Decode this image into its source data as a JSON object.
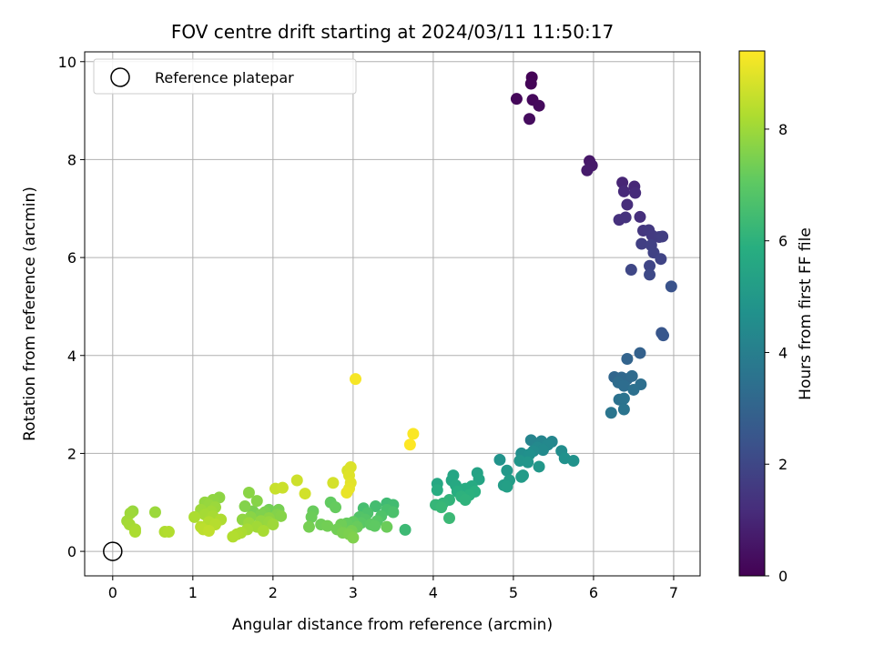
{
  "chart_data": {
    "type": "scatter",
    "title": "FOV centre drift starting at 2024/03/11 11:50:17",
    "xlabel": "Angular distance from reference (arcmin)",
    "ylabel": "Rotation from reference (arcmin)",
    "xlim": [
      -0.35,
      7.33
    ],
    "ylim": [
      -0.5,
      10.2
    ],
    "xticks": [
      "0",
      "1",
      "2",
      "3",
      "4",
      "5",
      "6",
      "7"
    ],
    "yticks": [
      "0",
      "2",
      "4",
      "6",
      "8",
      "10"
    ],
    "grid": true,
    "legend": {
      "placement": "top-left",
      "entries": [
        "Reference platepar"
      ]
    },
    "reference": {
      "x": 0,
      "y": 0,
      "label": "Reference platepar"
    },
    "colorbar": {
      "label": "Hours from first FF file",
      "colormap": "viridis",
      "range": [
        0,
        9.4
      ],
      "ticks": [
        "0",
        "2",
        "4",
        "6",
        "8"
      ]
    },
    "points": [
      [
        5.23,
        9.68,
        0.05
      ],
      [
        5.22,
        9.55,
        0.1
      ],
      [
        5.04,
        9.24,
        0.15
      ],
      [
        5.24,
        9.22,
        0.2
      ],
      [
        5.32,
        9.1,
        0.25
      ],
      [
        5.2,
        8.83,
        0.3
      ],
      [
        5.95,
        7.97,
        0.6
      ],
      [
        5.98,
        7.88,
        0.65
      ],
      [
        5.92,
        7.78,
        0.7
      ],
      [
        6.36,
        7.53,
        1.0
      ],
      [
        6.51,
        7.45,
        1.05
      ],
      [
        6.38,
        7.35,
        1.1
      ],
      [
        6.52,
        7.32,
        1.15
      ],
      [
        6.42,
        7.08,
        1.2
      ],
      [
        6.58,
        6.83,
        1.25
      ],
      [
        6.32,
        6.77,
        1.3
      ],
      [
        6.4,
        6.82,
        1.35
      ],
      [
        6.62,
        6.55,
        1.5
      ],
      [
        6.69,
        6.56,
        1.55
      ],
      [
        6.73,
        6.45,
        1.6
      ],
      [
        6.82,
        6.42,
        1.65
      ],
      [
        6.86,
        6.43,
        1.7
      ],
      [
        6.6,
        6.28,
        1.75
      ],
      [
        6.72,
        6.25,
        1.8
      ],
      [
        6.75,
        6.1,
        1.85
      ],
      [
        6.84,
        5.97,
        1.9
      ],
      [
        6.7,
        5.83,
        1.95
      ],
      [
        6.47,
        5.75,
        2.0
      ],
      [
        6.7,
        5.65,
        2.05
      ],
      [
        6.97,
        5.41,
        2.4
      ],
      [
        6.85,
        4.46,
        2.5
      ],
      [
        6.87,
        4.41,
        2.55
      ],
      [
        6.58,
        4.05,
        2.9
      ],
      [
        6.42,
        3.93,
        3.0
      ],
      [
        6.26,
        3.56,
        3.1
      ],
      [
        6.35,
        3.55,
        3.15
      ],
      [
        6.42,
        3.52,
        3.2
      ],
      [
        6.48,
        3.58,
        3.25
      ],
      [
        6.31,
        3.45,
        3.3
      ],
      [
        6.38,
        3.38,
        3.35
      ],
      [
        6.59,
        3.41,
        3.4
      ],
      [
        6.5,
        3.3,
        3.45
      ],
      [
        6.32,
        3.1,
        3.5
      ],
      [
        6.38,
        3.12,
        3.55
      ],
      [
        6.38,
        2.9,
        3.6
      ],
      [
        6.22,
        2.83,
        3.65
      ],
      [
        5.22,
        2.27,
        4.2
      ],
      [
        5.35,
        2.25,
        4.25
      ],
      [
        5.48,
        2.24,
        4.3
      ],
      [
        5.43,
        2.18,
        4.35
      ],
      [
        5.3,
        2.12,
        4.4
      ],
      [
        5.37,
        2.07,
        4.45
      ],
      [
        5.25,
        2.05,
        4.5
      ],
      [
        5.6,
        2.05,
        4.55
      ],
      [
        5.1,
        2.0,
        4.6
      ],
      [
        5.2,
        1.98,
        4.65
      ],
      [
        5.64,
        1.9,
        4.7
      ],
      [
        5.75,
        1.85,
        4.75
      ],
      [
        4.83,
        1.87,
        4.8
      ],
      [
        5.08,
        1.85,
        4.85
      ],
      [
        5.18,
        1.82,
        4.9
      ],
      [
        5.32,
        1.73,
        4.95
      ],
      [
        4.92,
        1.65,
        5.0
      ],
      [
        5.12,
        1.55,
        5.05
      ],
      [
        5.1,
        1.52,
        5.1
      ],
      [
        4.95,
        1.45,
        5.15
      ],
      [
        4.88,
        1.35,
        5.2
      ],
      [
        4.92,
        1.32,
        5.25
      ],
      [
        4.55,
        1.6,
        5.4
      ],
      [
        4.57,
        1.47,
        5.45
      ],
      [
        4.25,
        1.55,
        5.5
      ],
      [
        4.23,
        1.45,
        5.55
      ],
      [
        4.05,
        1.38,
        5.6
      ],
      [
        4.28,
        1.35,
        5.65
      ],
      [
        4.48,
        1.33,
        5.7
      ],
      [
        4.4,
        1.28,
        5.75
      ],
      [
        4.05,
        1.25,
        5.8
      ],
      [
        4.3,
        1.22,
        5.85
      ],
      [
        4.52,
        1.22,
        5.9
      ],
      [
        4.45,
        1.15,
        5.95
      ],
      [
        4.35,
        1.12,
        6.0
      ],
      [
        4.4,
        1.05,
        6.05
      ],
      [
        4.2,
        1.05,
        6.1
      ],
      [
        4.12,
        0.98,
        6.15
      ],
      [
        4.03,
        0.95,
        6.2
      ],
      [
        4.1,
        0.9,
        6.25
      ],
      [
        4.2,
        0.68,
        6.3
      ],
      [
        3.65,
        0.44,
        6.35
      ],
      [
        3.42,
        0.98,
        6.4
      ],
      [
        3.5,
        0.95,
        6.45
      ],
      [
        3.28,
        0.92,
        6.5
      ],
      [
        3.13,
        0.88,
        6.55
      ],
      [
        3.42,
        0.85,
        6.6
      ],
      [
        3.5,
        0.8,
        6.65
      ],
      [
        3.18,
        0.78,
        6.7
      ],
      [
        3.35,
        0.72,
        6.75
      ],
      [
        3.08,
        0.7,
        6.8
      ],
      [
        3.15,
        0.65,
        6.85
      ],
      [
        3.3,
        0.62,
        6.9
      ],
      [
        3.1,
        0.58,
        6.95
      ],
      [
        3.22,
        0.55,
        7.0
      ],
      [
        3.27,
        0.52,
        7.05
      ],
      [
        3.0,
        0.6,
        7.1
      ],
      [
        2.92,
        0.57,
        7.15
      ],
      [
        3.05,
        0.5,
        7.2
      ],
      [
        3.42,
        0.5,
        7.25
      ],
      [
        2.85,
        0.55,
        7.3
      ],
      [
        2.8,
        0.45,
        7.35
      ],
      [
        2.98,
        0.42,
        7.4
      ],
      [
        2.87,
        0.38,
        7.45
      ],
      [
        2.95,
        0.35,
        7.5
      ],
      [
        3.0,
        0.28,
        7.55
      ],
      [
        2.72,
        1.0,
        7.1
      ],
      [
        2.78,
        0.9,
        7.15
      ],
      [
        2.5,
        0.82,
        7.2
      ],
      [
        2.48,
        0.7,
        7.25
      ],
      [
        2.6,
        0.55,
        7.3
      ],
      [
        2.68,
        0.52,
        7.35
      ],
      [
        2.45,
        0.5,
        7.4
      ],
      [
        1.95,
        0.85,
        7.35
      ],
      [
        2.07,
        0.85,
        7.4
      ],
      [
        1.75,
        0.82,
        7.45
      ],
      [
        1.9,
        0.8,
        7.5
      ],
      [
        1.85,
        0.75,
        7.55
      ],
      [
        2.05,
        0.75,
        7.6
      ],
      [
        2.1,
        0.72,
        7.65
      ],
      [
        1.72,
        0.7,
        7.7
      ],
      [
        1.95,
        0.68,
        7.75
      ],
      [
        1.62,
        0.65,
        7.8
      ],
      [
        1.85,
        0.62,
        7.85
      ],
      [
        1.95,
        0.6,
        7.9
      ],
      [
        1.7,
        0.58,
        7.95
      ],
      [
        2.0,
        0.55,
        8.0
      ],
      [
        1.8,
        0.5,
        8.05
      ],
      [
        1.68,
        0.45,
        8.1
      ],
      [
        1.88,
        0.42,
        8.15
      ],
      [
        1.6,
        0.38,
        8.2
      ],
      [
        1.55,
        0.35,
        8.25
      ],
      [
        1.5,
        0.3,
        8.3
      ],
      [
        1.65,
        0.92,
        7.6
      ],
      [
        1.8,
        1.03,
        7.65
      ],
      [
        1.7,
        1.2,
        7.7
      ],
      [
        1.33,
        1.1,
        7.75
      ],
      [
        1.25,
        1.05,
        7.8
      ],
      [
        1.15,
        1.0,
        7.85
      ],
      [
        1.2,
        0.95,
        7.9
      ],
      [
        1.28,
        0.9,
        7.95
      ],
      [
        1.1,
        0.85,
        8.0
      ],
      [
        1.23,
        0.82,
        8.05
      ],
      [
        1.15,
        0.75,
        8.1
      ],
      [
        1.25,
        0.72,
        8.15
      ],
      [
        1.02,
        0.7,
        8.2
      ],
      [
        1.35,
        0.65,
        8.25
      ],
      [
        1.2,
        0.6,
        8.3
      ],
      [
        1.28,
        0.55,
        8.35
      ],
      [
        1.1,
        0.5,
        8.4
      ],
      [
        1.13,
        0.45,
        8.45
      ],
      [
        1.2,
        0.42,
        8.5
      ],
      [
        0.25,
        0.82,
        7.9
      ],
      [
        0.53,
        0.8,
        7.95
      ],
      [
        0.22,
        0.78,
        8.0
      ],
      [
        0.18,
        0.62,
        8.05
      ],
      [
        0.21,
        0.55,
        8.1
      ],
      [
        0.28,
        0.45,
        8.15
      ],
      [
        0.28,
        0.4,
        8.2
      ],
      [
        0.65,
        0.4,
        8.25
      ],
      [
        0.7,
        0.4,
        8.3
      ],
      [
        2.03,
        1.28,
        8.6
      ],
      [
        2.12,
        1.3,
        8.65
      ],
      [
        2.3,
        1.45,
        8.7
      ],
      [
        2.4,
        1.18,
        8.75
      ],
      [
        2.75,
        1.4,
        8.8
      ],
      [
        2.93,
        1.65,
        8.85
      ],
      [
        2.97,
        1.72,
        8.9
      ],
      [
        2.95,
        1.55,
        8.95
      ],
      [
        2.97,
        1.4,
        9.0
      ],
      [
        2.95,
        1.28,
        9.05
      ],
      [
        2.92,
        1.2,
        9.1
      ],
      [
        3.03,
        3.52,
        9.3
      ],
      [
        3.75,
        2.4,
        9.35
      ],
      [
        3.71,
        2.18,
        9.4
      ]
    ]
  }
}
